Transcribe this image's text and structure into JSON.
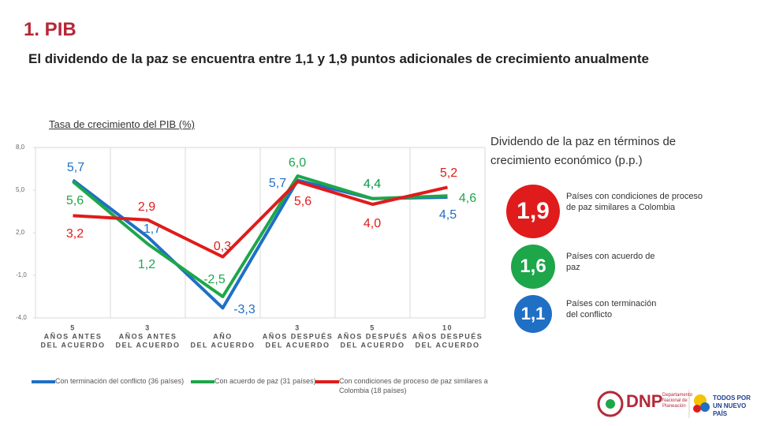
{
  "header": {
    "title": "1. PIB",
    "subtitle": "El dividendo de la paz se encuentra entre 1,1 y 1,9 puntos adicionales de crecimiento anualmente"
  },
  "chart_data": {
    "type": "line",
    "title": "Tasa de crecimiento del PIB (%)",
    "categories": [
      [
        "5",
        "AÑOS ANTES",
        "DEL ACUERDO"
      ],
      [
        "3",
        "AÑOS ANTES",
        "DEL ACUERDO"
      ],
      [
        "AÑO",
        "DEL ACUERDO"
      ],
      [
        "3",
        "AÑOS DESPUÉS",
        "DEL ACUERDO"
      ],
      [
        "5",
        "AÑOS DESPUÉS",
        "DEL ACUERDO"
      ],
      [
        "10",
        "AÑOS DESPUÉS",
        "DEL ACUERDO"
      ]
    ],
    "series": [
      {
        "name": "Con terminación del conflicto (36 países)",
        "color": "#1f6fc5",
        "values": [
          5.7,
          1.7,
          -3.3,
          5.7,
          4.4,
          4.5
        ],
        "value_labels": [
          "5,7",
          "1,7",
          "-3,3",
          "5,7",
          "4,4",
          "4,5"
        ]
      },
      {
        "name": "Con acuerdo de paz (31 países)",
        "color": "#1ea64a",
        "values": [
          5.6,
          1.2,
          -2.5,
          6.0,
          4.4,
          4.6
        ],
        "value_labels": [
          "5,6",
          "1,2",
          "-2,5",
          "6,0",
          "4,4",
          "4,6"
        ]
      },
      {
        "name": "Con condiciones de proceso de paz similares a Colombia (18 países)",
        "color": "#e01b1b",
        "values": [
          3.2,
          2.9,
          0.3,
          5.6,
          4.0,
          5.2
        ],
        "value_labels": [
          "3,2",
          "2,9",
          "0,3",
          "5,6",
          "4,0",
          "5,2"
        ]
      }
    ],
    "ylim": [
      -4,
      8
    ],
    "yticks": [
      {
        "value": -4,
        "label": "-4,0"
      },
      {
        "value": -1,
        "label": "-1,0"
      },
      {
        "value": 2,
        "label": "2,0"
      },
      {
        "value": 5,
        "label": "5,0"
      },
      {
        "value": 8,
        "label": "8,0"
      }
    ],
    "grid": false
  },
  "dividend": {
    "title": "Dividendo de la paz en términos de crecimiento económico (p.p.)",
    "items": [
      {
        "value": "1,9",
        "text": "Países con condiciones de proceso de paz similares a Colombia",
        "color": "#e01b1b"
      },
      {
        "value": "1,6",
        "text": "Países con acuerdo de paz",
        "color": "#1ea64a"
      },
      {
        "value": "1,1",
        "text": "Países con terminación del conflicto",
        "color": "#1f6fc5"
      }
    ]
  },
  "footer": {
    "dnp": "DNP",
    "dnp_name": "Departamento Nacional de Planeación",
    "slogan": "TODOS POR UN NUEVO PAÍS"
  }
}
